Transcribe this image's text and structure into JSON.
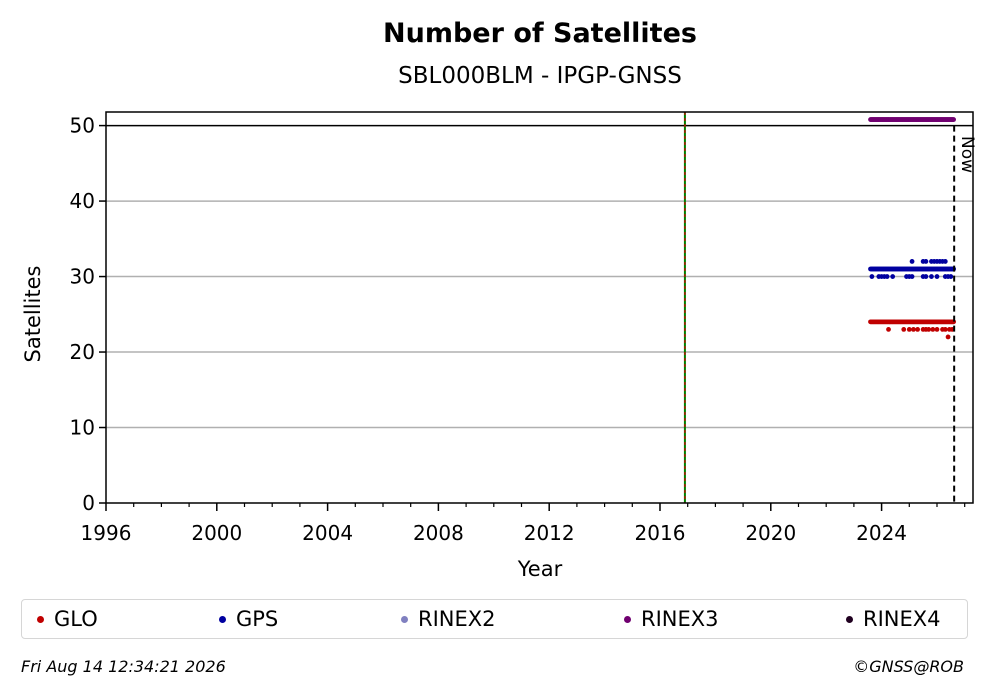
{
  "chart_data": {
    "type": "scatter",
    "title": "Number of Satellites",
    "subtitle": "SBL000BLM - IPGP-GNSS",
    "xlabel": "Year",
    "ylabel": "Satellites",
    "xlim": [
      1996,
      2027.3
    ],
    "ylim": [
      0,
      51.8
    ],
    "x_ticks": [
      1996,
      2000,
      2004,
      2008,
      2012,
      2016,
      2020,
      2024
    ],
    "y_ticks": [
      0,
      10,
      20,
      30,
      40,
      50
    ],
    "grid": "horizontal",
    "reference_lines": [
      {
        "x": 2016.9,
        "style": "green-red-dashed"
      },
      {
        "x": 2026.62,
        "label": "Now",
        "style": "black-dashed"
      }
    ],
    "horizontal_line": 50,
    "series": [
      {
        "name": "GLO",
        "color": "#c00000",
        "ranges": [
          {
            "from": 2023.6,
            "to": 2026.6,
            "y": 24
          }
        ],
        "points": [
          [
            2024.25,
            23
          ],
          [
            2024.8,
            23
          ],
          [
            2025.0,
            23
          ],
          [
            2025.15,
            23
          ],
          [
            2025.3,
            23
          ],
          [
            2025.5,
            23
          ],
          [
            2025.6,
            23
          ],
          [
            2025.7,
            23
          ],
          [
            2025.85,
            23
          ],
          [
            2026.0,
            23
          ],
          [
            2026.2,
            23
          ],
          [
            2026.3,
            23
          ],
          [
            2026.45,
            23
          ],
          [
            2026.55,
            23
          ],
          [
            2026.4,
            22
          ]
        ]
      },
      {
        "name": "GPS",
        "color": "#0000a0",
        "ranges": [
          {
            "from": 2023.6,
            "to": 2026.6,
            "y": 31
          }
        ],
        "points": [
          [
            2023.65,
            30
          ],
          [
            2023.9,
            30
          ],
          [
            2024.0,
            30
          ],
          [
            2024.1,
            30
          ],
          [
            2024.2,
            30
          ],
          [
            2024.4,
            30
          ],
          [
            2024.9,
            30
          ],
          [
            2025.0,
            30
          ],
          [
            2025.1,
            30
          ],
          [
            2025.5,
            30
          ],
          [
            2025.6,
            30
          ],
          [
            2025.8,
            30
          ],
          [
            2026.0,
            30
          ],
          [
            2026.3,
            30
          ],
          [
            2026.4,
            30
          ],
          [
            2026.5,
            30
          ],
          [
            2025.1,
            32
          ],
          [
            2025.5,
            32
          ],
          [
            2025.6,
            32
          ],
          [
            2025.8,
            32
          ],
          [
            2025.9,
            32
          ],
          [
            2026.0,
            32
          ],
          [
            2026.1,
            32
          ],
          [
            2026.2,
            32
          ],
          [
            2026.3,
            32
          ]
        ]
      },
      {
        "name": "RINEX2",
        "color": "#8080c0",
        "ranges": [],
        "points": []
      },
      {
        "name": "RINEX3",
        "color": "#700070",
        "ranges": [
          {
            "from": 2023.6,
            "to": 2026.6,
            "y": 50.8
          }
        ],
        "points": []
      },
      {
        "name": "RINEX4",
        "color": "#200020",
        "ranges": [],
        "points": []
      }
    ]
  },
  "footer": {
    "timestamp": "Fri Aug 14 12:34:21 2026",
    "credit": "©GNSS@ROB"
  }
}
